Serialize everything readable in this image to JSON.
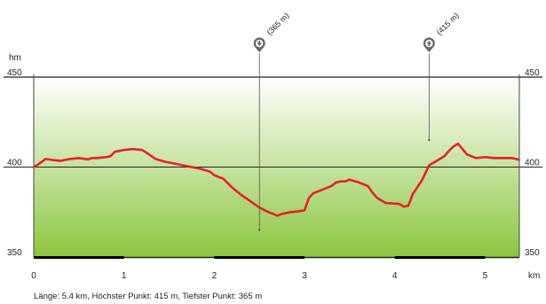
{
  "chart_data": {
    "type": "area",
    "title": "",
    "xlabel": "",
    "ylabel": "hm",
    "x_unit": "km",
    "xlim": [
      0,
      5.38
    ],
    "ylim": [
      350,
      450
    ],
    "x_ticks": [
      0,
      1,
      2,
      3,
      4,
      5
    ],
    "y_ticks": [
      350,
      400,
      450
    ],
    "grid": true,
    "fill_colors": [
      "#ffffff",
      "#8cc63f"
    ],
    "line_color": "#e8202a",
    "series": [
      {
        "x": [
          0,
          0.05,
          0.13,
          0.2,
          0.3,
          0.4,
          0.5,
          0.6,
          0.65,
          0.7,
          0.8,
          0.85,
          0.9,
          1.0,
          1.1,
          1.2,
          1.25,
          1.35,
          1.45,
          1.55,
          1.65,
          1.75,
          1.85,
          1.95,
          2.0,
          2.05,
          2.1,
          2.15,
          2.2,
          2.3,
          2.4,
          2.5,
          2.6,
          2.7,
          2.75,
          2.85,
          2.95,
          3.0,
          3.05,
          3.1,
          3.2,
          3.3,
          3.35,
          3.4,
          3.45,
          3.5,
          3.6,
          3.7,
          3.75,
          3.8,
          3.9,
          4.05,
          4.1,
          4.15,
          4.2,
          4.3,
          4.38,
          4.45,
          4.55,
          4.6,
          4.65,
          4.7,
          4.8,
          4.9,
          5.0,
          5.1,
          5.2,
          5.3,
          5.38
        ],
        "y": [
          400,
          401.5,
          404.5,
          404,
          403.5,
          404.5,
          405,
          404.3,
          405,
          405,
          405.5,
          406,
          408.5,
          409.5,
          410,
          409.5,
          408,
          404.5,
          403,
          402,
          401,
          400,
          399,
          397.5,
          395.5,
          394.5,
          393.5,
          391,
          388.5,
          384.5,
          381,
          377.5,
          375,
          373,
          374,
          375,
          375.5,
          376,
          383,
          385.5,
          387.5,
          389.5,
          391.5,
          392,
          392,
          393,
          391.5,
          389.5,
          386,
          383,
          380,
          379.5,
          378,
          378.5,
          385,
          392.5,
          401,
          403,
          406,
          409,
          411.5,
          413,
          407,
          405,
          405.5,
          405,
          405,
          405,
          404
        ]
      }
    ],
    "annotations": [
      {
        "label": "(365 m)",
        "icon": "arrow-down-marker-icon",
        "x": 2.5,
        "y": 365
      },
      {
        "label": "(415 m)",
        "icon": "arrow-up-marker-icon",
        "x": 4.38,
        "y": 415
      }
    ]
  },
  "footer": {
    "summary": "Länge: 5.4 km, Höchster Punkt: 415 m, Tiefster Punkt: 365 m"
  }
}
